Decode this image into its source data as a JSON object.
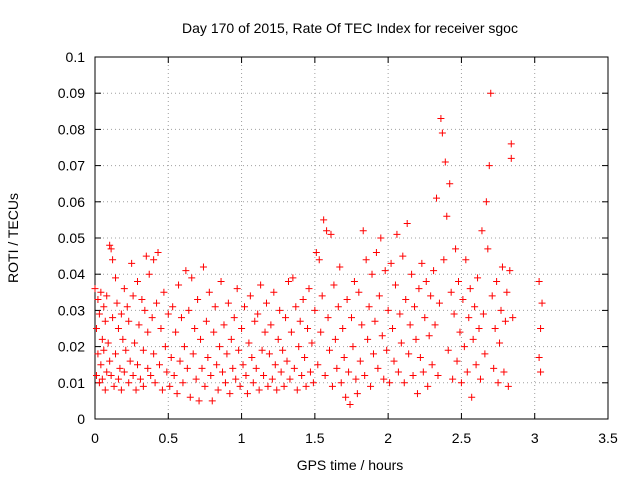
{
  "chart_data": {
    "type": "scatter",
    "title": "Day 170 of 2015, Rate Of TEC Index for receiver sgoc",
    "xlabel": "GPS time / hours",
    "ylabel": "ROTI / TECUs",
    "xlim": [
      0,
      3.5
    ],
    "ylim": [
      0,
      0.1
    ],
    "x_ticks": [
      "0",
      "0.5",
      "1",
      "1.5",
      "2",
      "2.5",
      "3",
      "3.5"
    ],
    "y_ticks": [
      "0",
      "0.01",
      "0.02",
      "0.03",
      "0.04",
      "0.05",
      "0.06",
      "0.07",
      "0.08",
      "0.09",
      "0.1"
    ],
    "grid": true,
    "marker": "plus",
    "color": "#ff0000",
    "series": [
      {
        "points": [
          [
            0.0,
            0.036
          ],
          [
            0.01,
            0.012
          ],
          [
            0.01,
            0.025
          ],
          [
            0.02,
            0.033
          ],
          [
            0.02,
            0.018
          ],
          [
            0.03,
            0.01
          ],
          [
            0.03,
            0.029
          ],
          [
            0.04,
            0.015
          ],
          [
            0.04,
            0.035
          ],
          [
            0.05,
            0.022
          ],
          [
            0.05,
            0.011
          ],
          [
            0.06,
            0.031
          ],
          [
            0.06,
            0.019
          ],
          [
            0.07,
            0.008
          ],
          [
            0.07,
            0.027
          ],
          [
            0.08,
            0.013
          ],
          [
            0.08,
            0.034
          ],
          [
            0.09,
            0.021
          ],
          [
            0.1,
            0.016
          ],
          [
            0.1,
            0.048
          ],
          [
            0.11,
            0.047
          ],
          [
            0.11,
            0.012
          ],
          [
            0.12,
            0.044
          ],
          [
            0.12,
            0.028
          ],
          [
            0.13,
            0.009
          ],
          [
            0.14,
            0.039
          ],
          [
            0.14,
            0.018
          ],
          [
            0.15,
            0.032
          ],
          [
            0.16,
            0.011
          ],
          [
            0.16,
            0.025
          ],
          [
            0.17,
            0.014
          ],
          [
            0.18,
            0.029
          ],
          [
            0.18,
            0.008
          ],
          [
            0.19,
            0.022
          ],
          [
            0.2,
            0.036
          ],
          [
            0.2,
            0.013
          ],
          [
            0.21,
            0.019
          ],
          [
            0.22,
            0.031
          ],
          [
            0.23,
            0.01
          ],
          [
            0.23,
            0.027
          ],
          [
            0.24,
            0.016
          ],
          [
            0.25,
            0.043
          ],
          [
            0.26,
            0.012
          ],
          [
            0.26,
            0.034
          ],
          [
            0.27,
            0.021
          ],
          [
            0.28,
            0.008
          ],
          [
            0.29,
            0.038
          ],
          [
            0.29,
            0.015
          ],
          [
            0.3,
            0.026
          ],
          [
            0.31,
            0.011
          ],
          [
            0.32,
            0.033
          ],
          [
            0.33,
            0.019
          ],
          [
            0.33,
            0.009
          ],
          [
            0.34,
            0.03
          ],
          [
            0.35,
            0.045
          ],
          [
            0.36,
            0.014
          ],
          [
            0.36,
            0.024
          ],
          [
            0.37,
            0.04
          ],
          [
            0.38,
            0.012
          ],
          [
            0.39,
            0.028
          ],
          [
            0.4,
            0.018
          ],
          [
            0.4,
            0.044
          ],
          [
            0.41,
            0.01
          ],
          [
            0.42,
            0.032
          ],
          [
            0.43,
            0.046
          ],
          [
            0.44,
            0.015
          ],
          [
            0.45,
            0.025
          ],
          [
            0.46,
            0.008
          ],
          [
            0.47,
            0.035
          ],
          [
            0.48,
            0.02
          ],
          [
            0.49,
            0.013
          ],
          [
            0.5,
            0.029
          ],
          [
            0.51,
            0.009
          ],
          [
            0.52,
            0.017
          ],
          [
            0.53,
            0.031
          ],
          [
            0.54,
            0.012
          ],
          [
            0.55,
            0.024
          ],
          [
            0.56,
            0.007
          ],
          [
            0.57,
            0.037
          ],
          [
            0.58,
            0.016
          ],
          [
            0.59,
            0.028
          ],
          [
            0.6,
            0.01
          ],
          [
            0.61,
            0.02
          ],
          [
            0.62,
            0.041
          ],
          [
            0.63,
            0.014
          ],
          [
            0.64,
            0.03
          ],
          [
            0.65,
            0.006
          ],
          [
            0.66,
            0.039
          ],
          [
            0.67,
            0.018
          ],
          [
            0.68,
            0.025
          ],
          [
            0.69,
            0.011
          ],
          [
            0.7,
            0.033
          ],
          [
            0.71,
            0.005
          ],
          [
            0.72,
            0.022
          ],
          [
            0.73,
            0.014
          ],
          [
            0.74,
            0.042
          ],
          [
            0.75,
            0.009
          ],
          [
            0.76,
            0.027
          ],
          [
            0.77,
            0.017
          ],
          [
            0.78,
            0.035
          ],
          [
            0.79,
            0.012
          ],
          [
            0.8,
            0.005
          ],
          [
            0.81,
            0.024
          ],
          [
            0.82,
            0.031
          ],
          [
            0.83,
            0.015
          ],
          [
            0.84,
            0.008
          ],
          [
            0.85,
            0.02
          ],
          [
            0.86,
            0.038
          ],
          [
            0.87,
            0.013
          ],
          [
            0.88,
            0.026
          ],
          [
            0.89,
            0.01
          ],
          [
            0.9,
            0.018
          ],
          [
            0.91,
            0.032
          ],
          [
            0.92,
            0.007
          ],
          [
            0.93,
            0.022
          ],
          [
            0.94,
            0.014
          ],
          [
            0.95,
            0.028
          ],
          [
            0.96,
            0.011
          ],
          [
            0.97,
            0.036
          ],
          [
            0.98,
            0.019
          ],
          [
            0.99,
            0.009
          ],
          [
            1.0,
            0.025
          ],
          [
            1.01,
            0.015
          ],
          [
            1.02,
            0.031
          ],
          [
            1.03,
            0.012
          ],
          [
            1.04,
            0.007
          ],
          [
            1.05,
            0.021
          ],
          [
            1.06,
            0.034
          ],
          [
            1.07,
            0.017
          ],
          [
            1.08,
            0.01
          ],
          [
            1.09,
            0.027
          ],
          [
            1.1,
            0.014
          ],
          [
            1.11,
            0.029
          ],
          [
            1.12,
            0.008
          ],
          [
            1.13,
            0.037
          ],
          [
            1.14,
            0.019
          ],
          [
            1.15,
            0.012
          ],
          [
            1.16,
            0.024
          ],
          [
            1.17,
            0.032
          ],
          [
            1.18,
            0.009
          ],
          [
            1.19,
            0.018
          ],
          [
            1.2,
            0.026
          ],
          [
            1.21,
            0.011
          ],
          [
            1.22,
            0.035
          ],
          [
            1.23,
            0.015
          ],
          [
            1.24,
            0.008
          ],
          [
            1.25,
            0.022
          ],
          [
            1.26,
            0.03
          ],
          [
            1.27,
            0.013
          ],
          [
            1.28,
            0.019
          ],
          [
            1.29,
            0.009
          ],
          [
            1.3,
            0.028
          ],
          [
            1.31,
            0.016
          ],
          [
            1.32,
            0.038
          ],
          [
            1.33,
            0.011
          ],
          [
            1.34,
            0.024
          ],
          [
            1.35,
            0.039
          ],
          [
            1.36,
            0.014
          ],
          [
            1.37,
            0.031
          ],
          [
            1.38,
            0.008
          ],
          [
            1.39,
            0.02
          ],
          [
            1.4,
            0.027
          ],
          [
            1.41,
            0.012
          ],
          [
            1.42,
            0.033
          ],
          [
            1.43,
            0.017
          ],
          [
            1.44,
            0.009
          ],
          [
            1.45,
            0.025
          ],
          [
            1.46,
            0.036
          ],
          [
            1.47,
            0.013
          ],
          [
            1.48,
            0.021
          ],
          [
            1.49,
            0.01
          ],
          [
            1.5,
            0.03
          ],
          [
            1.51,
            0.046
          ],
          [
            1.52,
            0.015
          ],
          [
            1.53,
            0.044
          ],
          [
            1.54,
            0.024
          ],
          [
            1.55,
            0.034
          ],
          [
            1.56,
            0.055
          ],
          [
            1.57,
            0.012
          ],
          [
            1.58,
            0.052
          ],
          [
            1.59,
            0.028
          ],
          [
            1.6,
            0.019
          ],
          [
            1.61,
            0.051
          ],
          [
            1.62,
            0.009
          ],
          [
            1.63,
            0.037
          ],
          [
            1.64,
            0.022
          ],
          [
            1.65,
            0.014
          ],
          [
            1.66,
            0.031
          ],
          [
            1.67,
            0.042
          ],
          [
            1.68,
            0.01
          ],
          [
            1.69,
            0.025
          ],
          [
            1.7,
            0.017
          ],
          [
            1.71,
            0.006
          ],
          [
            1.72,
            0.033
          ],
          [
            1.73,
            0.013
          ],
          [
            1.74,
            0.004
          ],
          [
            1.75,
            0.028
          ],
          [
            1.76,
            0.02
          ],
          [
            1.77,
            0.038
          ],
          [
            1.78,
            0.011
          ],
          [
            1.79,
            0.007
          ],
          [
            1.8,
            0.035
          ],
          [
            1.81,
            0.016
          ],
          [
            1.82,
            0.026
          ],
          [
            1.83,
            0.052
          ],
          [
            1.84,
            0.012
          ],
          [
            1.85,
            0.044
          ],
          [
            1.86,
            0.022
          ],
          [
            1.87,
            0.031
          ],
          [
            1.88,
            0.009
          ],
          [
            1.89,
            0.04
          ],
          [
            1.9,
            0.018
          ],
          [
            1.91,
            0.027
          ],
          [
            1.92,
            0.046
          ],
          [
            1.93,
            0.014
          ],
          [
            1.94,
            0.034
          ],
          [
            1.95,
            0.05
          ],
          [
            1.96,
            0.023
          ],
          [
            1.97,
            0.011
          ],
          [
            1.98,
            0.041
          ],
          [
            1.99,
            0.019
          ],
          [
            2.0,
            0.03
          ],
          [
            2.01,
            0.01
          ],
          [
            2.02,
            0.043
          ],
          [
            2.03,
            0.025
          ],
          [
            2.04,
            0.016
          ],
          [
            2.05,
            0.037
          ],
          [
            2.06,
            0.051
          ],
          [
            2.07,
            0.013
          ],
          [
            2.08,
            0.029
          ],
          [
            2.09,
            0.021
          ],
          [
            2.1,
            0.045
          ],
          [
            2.11,
            0.01
          ],
          [
            2.12,
            0.033
          ],
          [
            2.13,
            0.054
          ],
          [
            2.14,
            0.018
          ],
          [
            2.15,
            0.026
          ],
          [
            2.16,
            0.04
          ],
          [
            2.17,
            0.012
          ],
          [
            2.18,
            0.031
          ],
          [
            2.19,
            0.022
          ],
          [
            2.2,
            0.007
          ],
          [
            2.21,
            0.036
          ],
          [
            2.22,
            0.017
          ],
          [
            2.23,
            0.043
          ],
          [
            2.24,
            0.013
          ],
          [
            2.25,
            0.028
          ],
          [
            2.26,
            0.038
          ],
          [
            2.27,
            0.009
          ],
          [
            2.28,
            0.023
          ],
          [
            2.29,
            0.034
          ],
          [
            2.3,
            0.015
          ],
          [
            2.31,
            0.041
          ],
          [
            2.32,
            0.026
          ],
          [
            2.33,
            0.061
          ],
          [
            2.34,
            0.012
          ],
          [
            2.35,
            0.032
          ],
          [
            2.36,
            0.083
          ],
          [
            2.37,
            0.079
          ],
          [
            2.38,
            0.044
          ],
          [
            2.39,
            0.071
          ],
          [
            2.4,
            0.056
          ],
          [
            2.41,
            0.019
          ],
          [
            2.42,
            0.065
          ],
          [
            2.43,
            0.035
          ],
          [
            2.44,
            0.011
          ],
          [
            2.45,
            0.029
          ],
          [
            2.46,
            0.047
          ],
          [
            2.47,
            0.016
          ],
          [
            2.48,
            0.038
          ],
          [
            2.49,
            0.024
          ],
          [
            2.5,
            0.01
          ],
          [
            2.51,
            0.033
          ],
          [
            2.52,
            0.02
          ],
          [
            2.53,
            0.044
          ],
          [
            2.54,
            0.013
          ],
          [
            2.55,
            0.028
          ],
          [
            2.56,
            0.036
          ],
          [
            2.57,
            0.006
          ],
          [
            2.58,
            0.022
          ],
          [
            2.59,
            0.031
          ],
          [
            2.6,
            0.015
          ],
          [
            2.61,
            0.039
          ],
          [
            2.62,
            0.025
          ],
          [
            2.63,
            0.011
          ],
          [
            2.64,
            0.052
          ],
          [
            2.65,
            0.029
          ],
          [
            2.66,
            0.018
          ],
          [
            2.67,
            0.06
          ],
          [
            2.68,
            0.047
          ],
          [
            2.69,
            0.07
          ],
          [
            2.7,
            0.09
          ],
          [
            2.71,
            0.034
          ],
          [
            2.72,
            0.014
          ],
          [
            2.73,
            0.025
          ],
          [
            2.74,
            0.038
          ],
          [
            2.75,
            0.01
          ],
          [
            2.76,
            0.021
          ],
          [
            2.77,
            0.03
          ],
          [
            2.78,
            0.042
          ],
          [
            2.79,
            0.013
          ],
          [
            2.8,
            0.027
          ],
          [
            2.81,
            0.035
          ],
          [
            2.82,
            0.009
          ],
          [
            2.83,
            0.041
          ],
          [
            2.84,
            0.076
          ],
          [
            2.84,
            0.072
          ],
          [
            2.85,
            0.028
          ],
          [
            3.03,
            0.038
          ],
          [
            3.03,
            0.017
          ],
          [
            3.04,
            0.025
          ],
          [
            3.04,
            0.013
          ],
          [
            3.05,
            0.032
          ]
        ]
      }
    ]
  }
}
